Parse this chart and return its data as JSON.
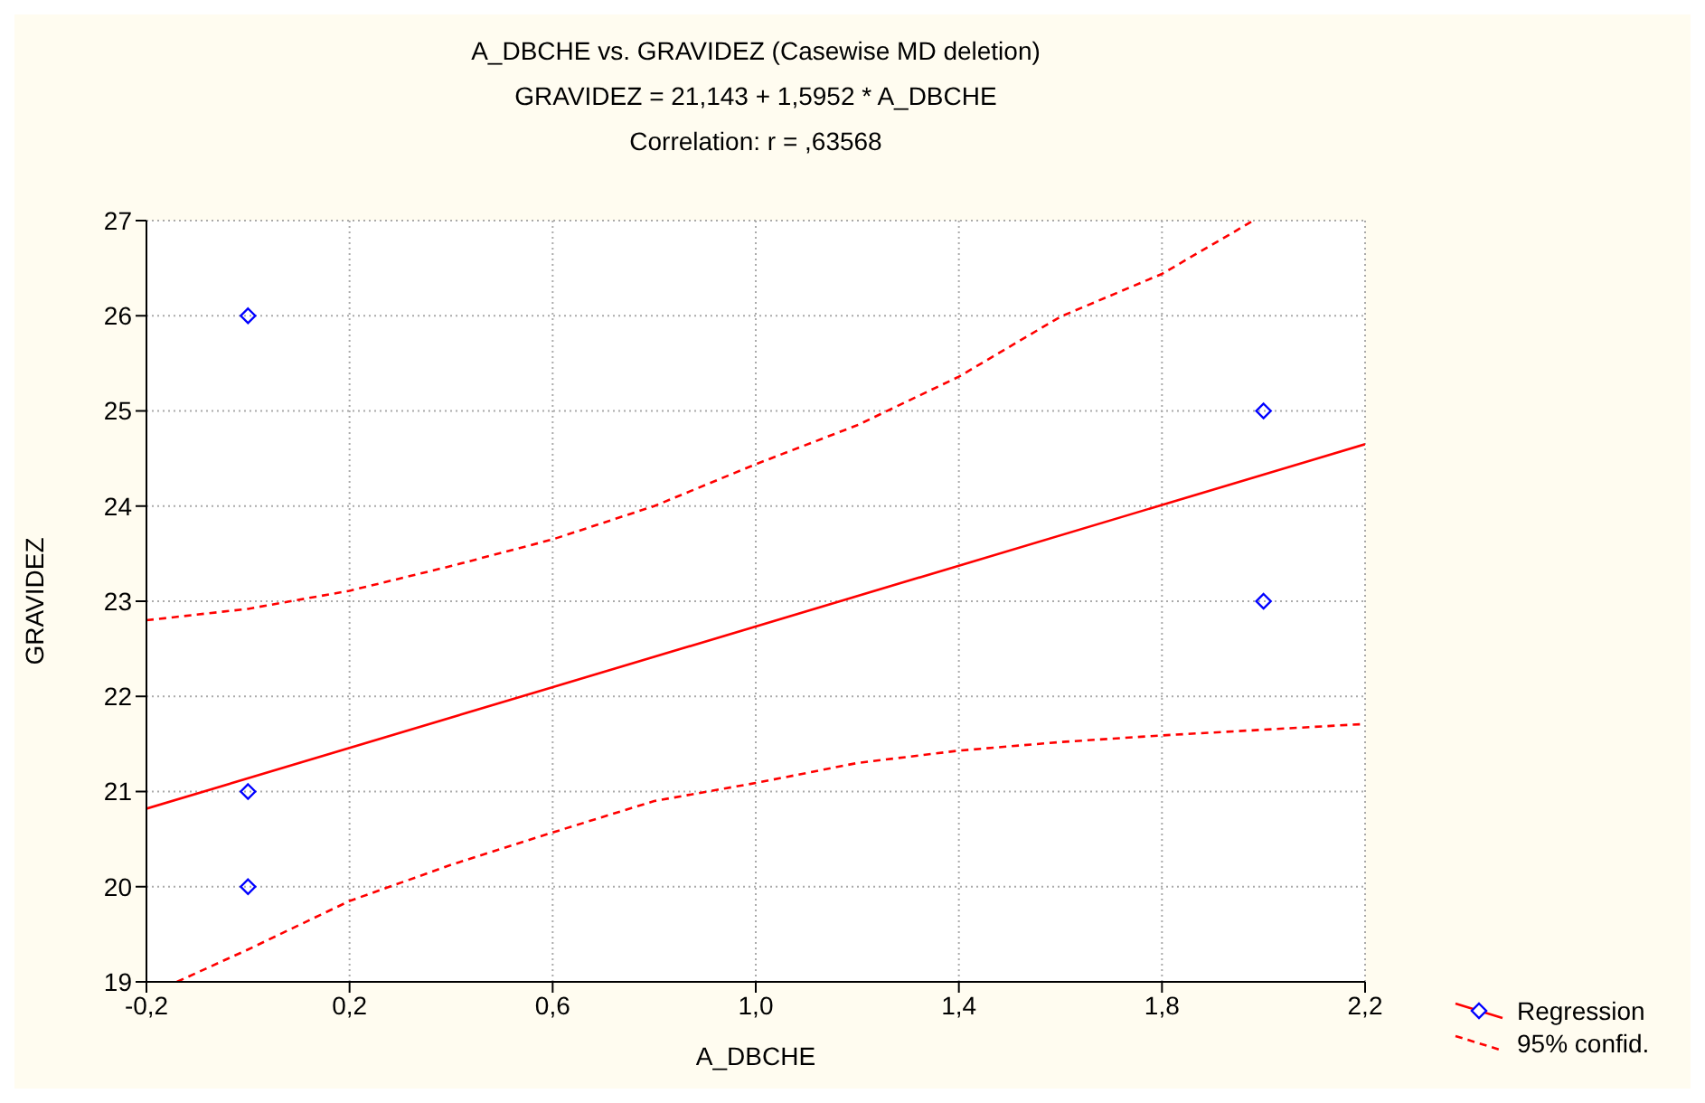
{
  "chart_data": {
    "type": "scatter",
    "title": "A_DBCHE vs. GRAVIDEZ (Casewise MD deletion)",
    "subtitle": "GRAVIDEZ = 21,143 + 1,5952 * A_DBCHE",
    "annotations": [
      "Correlation: r =  ,63568"
    ],
    "xlabel": "A_DBCHE",
    "ylabel": "GRAVIDEZ",
    "series": [
      {
        "color": "#0000ff",
        "marker": "diamond",
        "x": [
          0,
          0,
          0,
          2,
          2
        ],
        "values": [
          26,
          21,
          20,
          25,
          23
        ]
      },
      {
        "type": "line",
        "name": "Regression",
        "color": "#ff0000",
        "line_style": "solid",
        "marker": "none",
        "x": [
          -0.2,
          2.2
        ],
        "values": [
          20.82,
          24.65
        ]
      },
      {
        "type": "line",
        "name": "95% confid.",
        "color": "#ff0000",
        "line_style": "dashed",
        "marker": "none",
        "x": [
          -0.2,
          0,
          0.2,
          0.4,
          0.6,
          0.8,
          1.0,
          1.2,
          1.4,
          1.6,
          1.8,
          1.98
        ],
        "values": [
          22.8,
          22.92,
          23.11,
          23.37,
          23.65,
          24.0,
          24.44,
          24.85,
          25.36,
          25.99,
          26.44,
          27
        ]
      },
      {
        "type": "line",
        "color": "#ff0000",
        "line_style": "dashed",
        "marker": "none",
        "x": [
          -0.14,
          0,
          0.2,
          0.4,
          0.6,
          0.8,
          1.0,
          1.2,
          1.4,
          1.6,
          1.8,
          2.0,
          2.2
        ],
        "values": [
          19,
          19.34,
          19.85,
          20.23,
          20.57,
          20.9,
          21.09,
          21.3,
          21.43,
          21.52,
          21.59,
          21.65,
          21.71
        ]
      }
    ],
    "xlim": [
      -0.2,
      2.2
    ],
    "xticks": [
      {
        "value": -0.2,
        "label": "-0,2"
      },
      {
        "value": 0.2,
        "label": "0,2"
      },
      {
        "value": 0.6,
        "label": "0,6"
      },
      {
        "value": 1.0,
        "label": "1,0"
      },
      {
        "value": 1.4,
        "label": "1,4"
      },
      {
        "value": 1.8,
        "label": "1,8"
      },
      {
        "value": 2.2,
        "label": "2,2"
      }
    ],
    "ylim": [
      19,
      27
    ],
    "yticks": [
      19,
      20,
      21,
      22,
      23,
      24,
      25,
      26,
      27
    ],
    "grid": true,
    "legend": "bottom right"
  }
}
